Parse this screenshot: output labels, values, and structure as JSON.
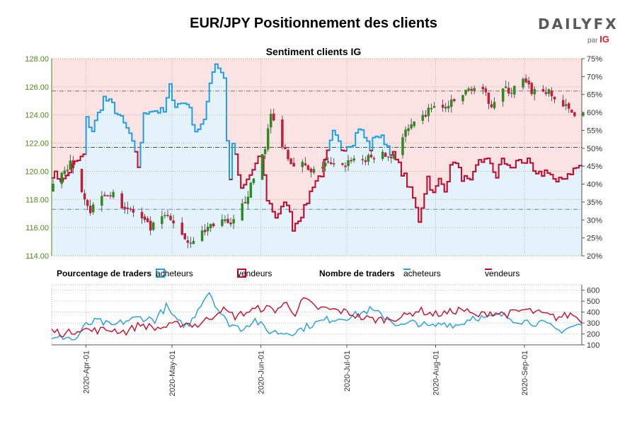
{
  "header": {
    "title": "EUR/JPY Positionnement des clients",
    "subtitle": "Sentiment clients IG"
  },
  "logo": {
    "brand_left": "DAILY",
    "brand_right": "FX",
    "by": "par",
    "partner": "IG"
  },
  "legend": {
    "pct_heading": "Pourcentage de traders",
    "pct_buyers": "acheteurs",
    "pct_sellers": "vendeurs",
    "count_heading": "Nombre de traders",
    "count_buyers": "acheteurs",
    "count_sellers": "vendeurs"
  },
  "colors": {
    "buyers": "#1f9fe6",
    "sellers": "#cc0a2a",
    "buyers_fill": "#e4f3fb",
    "sellers_fill": "#fbe3e4",
    "candle_up": "#2e8a20",
    "candle_down": "#c41e3a",
    "price_axis": "#4d8a1a"
  },
  "chart_data": [
    {
      "type": "candlestick",
      "title": "Sentiment clients IG",
      "x_ticks": [
        "2020-Apr-01",
        "2020-May-01",
        "2020-Jun-01",
        "2020-Jul-01",
        "2020-Aug-01",
        "2020-Sep-01"
      ],
      "x_range": [
        "2020-03-20",
        "2020-09-21"
      ],
      "y_left_label": "EUR/JPY",
      "y_left_ticks": [
        "114.00",
        "116.00",
        "118.00",
        "120.00",
        "122.00",
        "124.00",
        "126.00",
        "128.00"
      ],
      "y_left_range": [
        114,
        128
      ],
      "y_right_ticks": [
        "20%",
        "25%",
        "30%",
        "35%",
        "40%",
        "45%",
        "50%",
        "55%",
        "60%",
        "65%",
        "70%",
        "75%"
      ],
      "y_right_range": [
        20,
        75
      ],
      "reference_lines_left": [
        117.3,
        121.7,
        125.7
      ],
      "price_anchors": [
        [
          "2020-03-20",
          118.6
        ],
        [
          "2020-03-24",
          120.0
        ],
        [
          "2020-03-27",
          120.5
        ],
        [
          "2020-03-31",
          118.8
        ],
        [
          "2020-04-03",
          117.2
        ],
        [
          "2020-04-07",
          118.5
        ],
        [
          "2020-04-10",
          118.4
        ],
        [
          "2020-04-15",
          117.5
        ],
        [
          "2020-04-20",
          116.8
        ],
        [
          "2020-04-24",
          115.9
        ],
        [
          "2020-04-29",
          116.8
        ],
        [
          "2020-05-04",
          115.9
        ],
        [
          "2020-05-07",
          115.0
        ],
        [
          "2020-05-12",
          115.6
        ],
        [
          "2020-05-15",
          116.2
        ],
        [
          "2020-05-19",
          116.5
        ],
        [
          "2020-05-22",
          116.0
        ],
        [
          "2020-05-26",
          117.5
        ],
        [
          "2020-05-29",
          118.9
        ],
        [
          "2020-06-03",
          121.8
        ],
        [
          "2020-06-05",
          124.0
        ],
        [
          "2020-06-09",
          122.0
        ],
        [
          "2020-06-12",
          120.7
        ],
        [
          "2020-06-16",
          120.5
        ],
        [
          "2020-06-19",
          119.8
        ],
        [
          "2020-06-24",
          120.6
        ],
        [
          "2020-06-29",
          120.1
        ],
        [
          "2020-07-03",
          120.9
        ],
        [
          "2020-07-08",
          120.8
        ],
        [
          "2020-07-13",
          121.2
        ],
        [
          "2020-07-17",
          121.0
        ],
        [
          "2020-07-22",
          122.8
        ],
        [
          "2020-07-27",
          123.5
        ],
        [
          "2020-07-31",
          124.6
        ],
        [
          "2020-08-04",
          124.4
        ],
        [
          "2020-08-07",
          124.8
        ],
        [
          "2020-08-12",
          125.6
        ],
        [
          "2020-08-14",
          126.0
        ],
        [
          "2020-08-18",
          125.6
        ],
        [
          "2020-08-21",
          124.8
        ],
        [
          "2020-08-25",
          125.8
        ],
        [
          "2020-08-28",
          125.7
        ],
        [
          "2020-09-01",
          126.4
        ],
        [
          "2020-09-04",
          125.7
        ],
        [
          "2020-09-09",
          125.7
        ],
        [
          "2020-09-14",
          124.8
        ],
        [
          "2020-09-18",
          124.2
        ]
      ],
      "net_long_pct_anchors": [
        [
          "2020-03-20",
          43
        ],
        [
          "2020-03-24",
          41
        ],
        [
          "2020-03-27",
          45
        ],
        [
          "2020-03-31",
          48
        ],
        [
          "2020-04-01",
          58
        ],
        [
          "2020-04-03",
          55
        ],
        [
          "2020-04-07",
          64
        ],
        [
          "2020-04-10",
          62
        ],
        [
          "2020-04-13",
          58
        ],
        [
          "2020-04-16",
          54
        ],
        [
          "2020-04-19",
          45
        ],
        [
          "2020-04-21",
          59
        ],
        [
          "2020-04-23",
          61
        ],
        [
          "2020-04-28",
          60
        ],
        [
          "2020-04-30",
          67
        ],
        [
          "2020-05-02",
          62
        ],
        [
          "2020-05-06",
          63
        ],
        [
          "2020-05-09",
          55
        ],
        [
          "2020-05-12",
          57
        ],
        [
          "2020-05-14",
          69
        ],
        [
          "2020-05-16",
          74
        ],
        [
          "2020-05-19",
          70
        ],
        [
          "2020-05-20",
          52
        ],
        [
          "2020-05-21",
          41
        ],
        [
          "2020-05-22",
          52
        ],
        [
          "2020-05-25",
          38
        ],
        [
          "2020-05-29",
          44
        ],
        [
          "2020-06-01",
          48
        ],
        [
          "2020-06-03",
          36
        ],
        [
          "2020-06-06",
          31
        ],
        [
          "2020-06-10",
          35
        ],
        [
          "2020-06-12",
          28
        ],
        [
          "2020-06-16",
          33
        ],
        [
          "2020-06-19",
          40
        ],
        [
          "2020-06-22",
          43
        ],
        [
          "2020-06-26",
          54
        ],
        [
          "2020-06-29",
          50
        ],
        [
          "2020-07-03",
          52
        ],
        [
          "2020-07-05",
          56
        ],
        [
          "2020-07-09",
          50
        ],
        [
          "2020-07-11",
          54
        ],
        [
          "2020-07-14",
          52
        ],
        [
          "2020-07-17",
          48
        ],
        [
          "2020-07-21",
          42
        ],
        [
          "2020-07-24",
          36
        ],
        [
          "2020-07-26",
          30
        ],
        [
          "2020-07-29",
          42
        ],
        [
          "2020-07-31",
          37
        ],
        [
          "2020-08-02",
          41
        ],
        [
          "2020-08-04",
          39
        ],
        [
          "2020-08-07",
          47
        ],
        [
          "2020-08-10",
          42
        ],
        [
          "2020-08-13",
          40
        ],
        [
          "2020-08-16",
          47
        ],
        [
          "2020-08-20",
          46
        ],
        [
          "2020-08-22",
          42
        ],
        [
          "2020-08-24",
          47
        ],
        [
          "2020-08-27",
          44
        ],
        [
          "2020-08-30",
          47
        ],
        [
          "2020-09-02",
          46
        ],
        [
          "2020-09-05",
          42
        ],
        [
          "2020-09-09",
          44
        ],
        [
          "2020-09-12",
          40
        ],
        [
          "2020-09-16",
          43
        ],
        [
          "2020-09-20",
          45
        ]
      ],
      "buyer_count_anchors": [
        [
          "2020-03-20",
          140
        ],
        [
          "2020-03-25",
          180
        ],
        [
          "2020-03-28",
          140
        ],
        [
          "2020-04-01",
          280
        ],
        [
          "2020-04-05",
          320
        ],
        [
          "2020-04-10",
          270
        ],
        [
          "2020-04-15",
          320
        ],
        [
          "2020-04-20",
          350
        ],
        [
          "2020-04-25",
          330
        ],
        [
          "2020-04-29",
          450
        ],
        [
          "2020-05-03",
          300
        ],
        [
          "2020-05-07",
          280
        ],
        [
          "2020-05-11",
          480
        ],
        [
          "2020-05-14",
          590
        ],
        [
          "2020-05-17",
          430
        ],
        [
          "2020-05-20",
          310
        ],
        [
          "2020-05-25",
          250
        ],
        [
          "2020-05-30",
          330
        ],
        [
          "2020-06-03",
          230
        ],
        [
          "2020-06-08",
          210
        ],
        [
          "2020-06-13",
          220
        ],
        [
          "2020-06-18",
          280
        ],
        [
          "2020-06-24",
          330
        ],
        [
          "2020-06-30",
          350
        ],
        [
          "2020-07-05",
          380
        ],
        [
          "2020-07-09",
          420
        ],
        [
          "2020-07-14",
          360
        ],
        [
          "2020-07-20",
          270
        ],
        [
          "2020-07-25",
          310
        ],
        [
          "2020-07-30",
          260
        ],
        [
          "2020-08-04",
          300
        ],
        [
          "2020-08-09",
          280
        ],
        [
          "2020-08-14",
          360
        ],
        [
          "2020-08-19",
          340
        ],
        [
          "2020-08-24",
          370
        ],
        [
          "2020-08-29",
          330
        ],
        [
          "2020-09-03",
          310
        ],
        [
          "2020-09-08",
          290
        ],
        [
          "2020-09-13",
          230
        ],
        [
          "2020-09-18",
          270
        ],
        [
          "2020-09-20",
          280
        ]
      ],
      "seller_count_anchors": [
        [
          "2020-03-20",
          230
        ],
        [
          "2020-03-25",
          200
        ],
        [
          "2020-03-30",
          250
        ],
        [
          "2020-04-03",
          230
        ],
        [
          "2020-04-10",
          240
        ],
        [
          "2020-04-15",
          220
        ],
        [
          "2020-04-20",
          290
        ],
        [
          "2020-04-25",
          250
        ],
        [
          "2020-04-30",
          270
        ],
        [
          "2020-05-05",
          300
        ],
        [
          "2020-05-10",
          280
        ],
        [
          "2020-05-15",
          360
        ],
        [
          "2020-05-18",
          430
        ],
        [
          "2020-05-23",
          360
        ],
        [
          "2020-05-28",
          410
        ],
        [
          "2020-06-02",
          440
        ],
        [
          "2020-06-06",
          420
        ],
        [
          "2020-06-10",
          480
        ],
        [
          "2020-06-13",
          390
        ],
        [
          "2020-06-16",
          520
        ],
        [
          "2020-06-20",
          440
        ],
        [
          "2020-06-26",
          420
        ],
        [
          "2020-07-01",
          400
        ],
        [
          "2020-07-06",
          350
        ],
        [
          "2020-07-11",
          330
        ],
        [
          "2020-07-16",
          340
        ],
        [
          "2020-07-21",
          360
        ],
        [
          "2020-07-26",
          420
        ],
        [
          "2020-07-31",
          380
        ],
        [
          "2020-08-05",
          390
        ],
        [
          "2020-08-10",
          430
        ],
        [
          "2020-08-15",
          360
        ],
        [
          "2020-08-20",
          400
        ],
        [
          "2020-08-26",
          380
        ],
        [
          "2020-09-01",
          420
        ],
        [
          "2020-09-06",
          390
        ],
        [
          "2020-09-12",
          350
        ],
        [
          "2020-09-18",
          380
        ],
        [
          "2020-09-20",
          330
        ]
      ]
    },
    {
      "type": "line",
      "y_ticks": [
        "100",
        "200",
        "300",
        "400",
        "500",
        "600"
      ],
      "y_range": [
        100,
        650
      ],
      "series": [
        {
          "name": "acheteurs"
        },
        {
          "name": "vendeurs"
        }
      ]
    }
  ]
}
